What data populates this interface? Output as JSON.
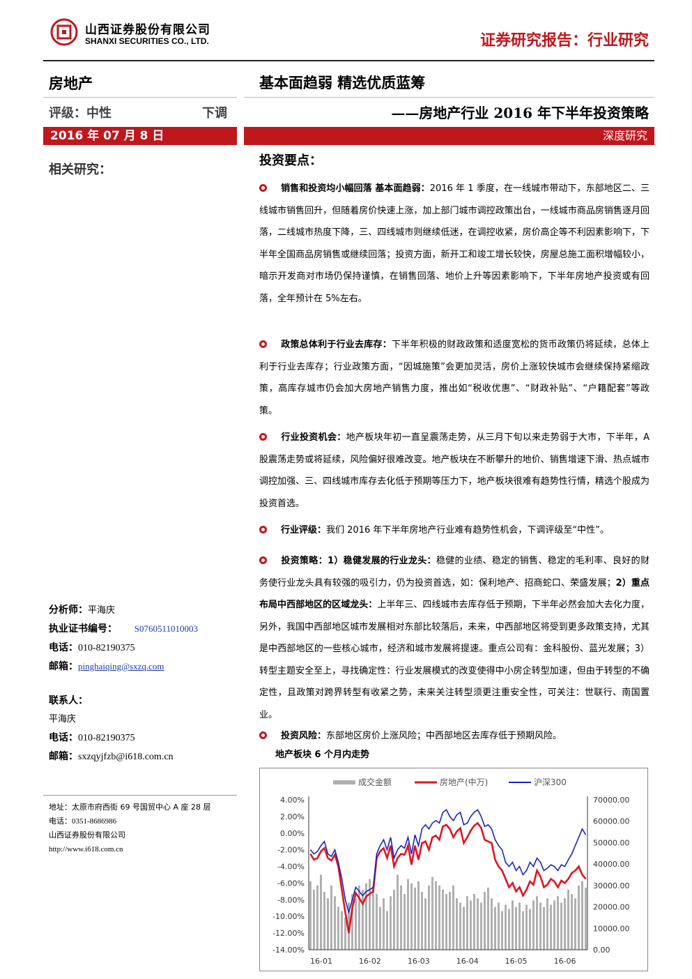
{
  "header": {
    "company_cn": "山西证券股份有限公司",
    "company_en": "SHANXI SECURITIES CO., LTD.",
    "report_type": "证券研究报告：行业研究"
  },
  "left": {
    "sector": "房地产",
    "rating_label": "评级：中性",
    "rating_direction": "下调",
    "date": "2016 年 07 月 8 日",
    "related_research": "相关研究：",
    "analyst": {
      "label": "分析师：",
      "name": "平海庆",
      "cert_label": "执业证书编号：",
      "cert_no": "S0760511010003",
      "phone_label": "电话：",
      "phone": "010-82190375",
      "email_label": "邮箱：",
      "email": "pinghaiqing@sxzq.com"
    },
    "contact": {
      "label": "联系人：",
      "name": "平海庆",
      "phone_label": "电话：",
      "phone": "010-82190375",
      "email_label": "邮箱：",
      "email": "sxzqyjfzb@i618.com.cn"
    },
    "address": {
      "address_label": "地址：",
      "address": "太原市府西街 69 号国贸中心 A 座 28 层",
      "phone_label": "电话：",
      "phone": "0351-8686986",
      "company": "山西证券股份有限公司",
      "url": "http://www.i618.com.cn"
    }
  },
  "main": {
    "headline": "基本面趋弱 精选优质蓝筹",
    "subheadline": "——房地产行业 2016 年下半年投资策略",
    "report_tag": "深度研究",
    "key_points_title": "投资要点：",
    "p1_title": "销售和投资均小幅回落 基本面趋弱：",
    "p1_text": "2016 年 1 季度，在一线城市带动下，东部地区二、三线城市销售回升，但随着房价快速上涨，加上部门城市调控政策出台，一线城市商品房销售逐月回落，二线城市热度下降，三、四线城市则继续低迷，在调控收紧，房价高企等不利因素影响下，下半年全国商品房销售或继续回落；投资方面，新开工和竣工增长较快，房屋总施工面积增幅较小，暗示开发商对市场仍保持谨慎，在销售回落、地价上升等因素影响下，下半年房地产投资或有回落，全年预计在 5%左右。",
    "p2_title": "政策总体利于行业去库存：",
    "p2_text": "下半年积极的财政政策和适度宽松的货币政策仍将延续，总体上利于行业去库存；行业政策方面，“因城施策”会更加灵活，房价上涨较快城市会继续保持紧缩政策，高库存城市仍会加大房地产销售力度，推出如“税收优惠”、“财政补贴”、“户籍配套”等政策。",
    "p3_title": "行业投资机会：",
    "p3_text": "地产板块年初一直呈震荡走势，从三月下旬以来走势弱于大市，下半年，A 股震荡走势或将延续，风险偏好很难改变。地产板块在不断攀升的地价、销售增速下滑、热点城市调控加强、三、四线城市库存去化低于预期等压力下，地产板块很难有趋势性行情，精选个股成为投资首选。",
    "p4_title": "行业评级：",
    "p4_text": "我们 2016 年下半年房地产行业难有趋势性机会，下调评级至“中性”。",
    "p5_title": "投资策略：",
    "p5_s1_head": "1）稳健发展的行业龙头：",
    "p5_s1_text": "稳健的业绩、稳定的销售、稳定的毛利率、良好的财务使行业龙头具有较强的吸引力，仍为投资首选，如：保利地产、招商蛇口、荣盛发展；",
    "p5_s2_head": "2）重点布局中西部地区的区域龙头：",
    "p5_s2_text": "上半年三、四线城市去库存低于预期，下半年必然会加大去化力度，另外，我国中西部地区城市发展相对东部比较落后，未来，中西部地区将受到更多政策支持，尤其是中西部地区的一些核心城市，经济和城市发展将提速。重点公司有：金科股份、蓝光发展；",
    "p5_s3_text": "3）转型主题安全至上，寻找确定性：行业发展模式的改变使得中小房企转型加速，但由于转型的不确定性，且政策对跨界转型有收紧之势，未来关注转型须更注重安全性，可关注：世联行、南国置业。",
    "p6_title": "投资风险：",
    "p6_text": "东部地区房价上涨风险；中西部地区去库存低于预期风险。",
    "chart_title": "地产板块 6 个月内走势"
  },
  "chart_data": {
    "type": "line",
    "legend": [
      "成交金额",
      "房地产(中万)",
      "沪深300"
    ],
    "legend_position": "top",
    "x_ticks": [
      "16-01",
      "16-02",
      "16-03",
      "16-04",
      "16-05",
      "16-06"
    ],
    "y_left_ticks": [
      "4.00%",
      "2.00%",
      "0.00%",
      "-2.00%",
      "-4.00%",
      "-6.00%",
      "-8.00%",
      "-10.00%",
      "-12.00%",
      "-14.00%"
    ],
    "y_right_ticks": [
      "70000.00",
      "60000.00",
      "50000.00",
      "40000.00",
      "30000.00",
      "20000.00",
      "10000.00",
      "0.00"
    ],
    "y_left_lim": [
      -14,
      4
    ],
    "y_right_lim": [
      0,
      70000
    ],
    "colors": {
      "volume": "#b0b0b0",
      "real_estate": "#e0141e",
      "hs300": "#1a22c0"
    },
    "series": [
      {
        "name": "成交金额",
        "values": [
          32000,
          28000,
          30000,
          35000,
          27000,
          24000,
          30000,
          25000,
          20000,
          18000,
          15000,
          22000,
          26000,
          24000,
          30000,
          28000,
          31000,
          33000,
          29000,
          26000,
          20000,
          24000,
          18000,
          25000,
          28000,
          35000,
          30000,
          26000,
          33000,
          31000,
          29000,
          32000,
          27000,
          24000,
          30000,
          34000,
          32000,
          30000,
          28000,
          26000,
          27000,
          30000,
          24000,
          22000,
          20000,
          25000,
          23000,
          26000,
          24000,
          22000,
          27000,
          29000,
          24000,
          20000,
          22000,
          18000,
          21000,
          19000,
          23000,
          20000,
          22000,
          18000,
          21000,
          19000,
          23000,
          25000,
          22000,
          20000,
          24000,
          21000,
          23000,
          25000,
          22000,
          24000,
          28000,
          26000,
          24000,
          30000,
          32000,
          29000
        ]
      },
      {
        "name": "房地产(中万)",
        "values": [
          -2.5,
          -3.2,
          -3.0,
          -2.2,
          -1.8,
          -3.0,
          -3.3,
          -2.6,
          -4.0,
          -6.8,
          -9.5,
          -12.0,
          -9.0,
          -7.2,
          -7.8,
          -8.5,
          -7.6,
          -7.3,
          -7.0,
          -3.0,
          -2.2,
          -1.8,
          -3.0,
          -1.5,
          -4.0,
          -3.0,
          -2.5,
          -2.6,
          -1.5,
          -3.8,
          -1.5,
          -3.2,
          -1.2,
          -1.0,
          -2.0,
          -0.5,
          -0.3,
          -0.8,
          0.8,
          1.0,
          0.5,
          -0.5,
          0.2,
          0.6,
          -1.2,
          -0.5,
          0.3,
          0.9,
          1.2,
          0.6,
          -0.8,
          -1.0,
          -1.2,
          -3.2,
          -4.0,
          -4.5,
          -5.5,
          -6.5,
          -6.0,
          -7.0,
          -6.5,
          -7.5,
          -6.8,
          -5.8,
          -6.2,
          -4.5,
          -5.2,
          -6.5,
          -6.2,
          -5.5,
          -5.8,
          -6.5,
          -5.7,
          -6.0,
          -5.5,
          -4.8,
          -4.5,
          -4.0,
          -5.0,
          -5.5
        ]
      },
      {
        "name": "沪深300",
        "values": [
          -2.0,
          -2.5,
          -2.2,
          -1.5,
          -1.0,
          -2.5,
          -2.8,
          -2.0,
          -3.5,
          -5.5,
          -8.0,
          -9.5,
          -8.0,
          -6.5,
          -7.0,
          -7.5,
          -7.0,
          -6.8,
          -6.5,
          -2.5,
          -1.5,
          -0.8,
          -2.0,
          -0.5,
          -3.0,
          -2.0,
          -1.5,
          -1.8,
          -0.5,
          -2.5,
          -0.2,
          -1.5,
          0.5,
          1.0,
          0.5,
          1.2,
          1.5,
          1.2,
          2.5,
          2.8,
          2.0,
          1.5,
          2.2,
          2.5,
          1.0,
          1.2,
          2.0,
          2.5,
          2.8,
          2.0,
          0.8,
          1.0,
          0.5,
          -0.8,
          -1.5,
          -2.0,
          -3.5,
          -4.0,
          -3.5,
          -4.5,
          -4.0,
          -5.0,
          -4.5,
          -3.5,
          -4.0,
          -3.0,
          -3.5,
          -4.5,
          -4.2,
          -3.8,
          -4.0,
          -4.5,
          -3.8,
          -4.0,
          -3.2,
          -2.5,
          -1.5,
          -0.5,
          0.5,
          -0.2
        ]
      }
    ]
  }
}
